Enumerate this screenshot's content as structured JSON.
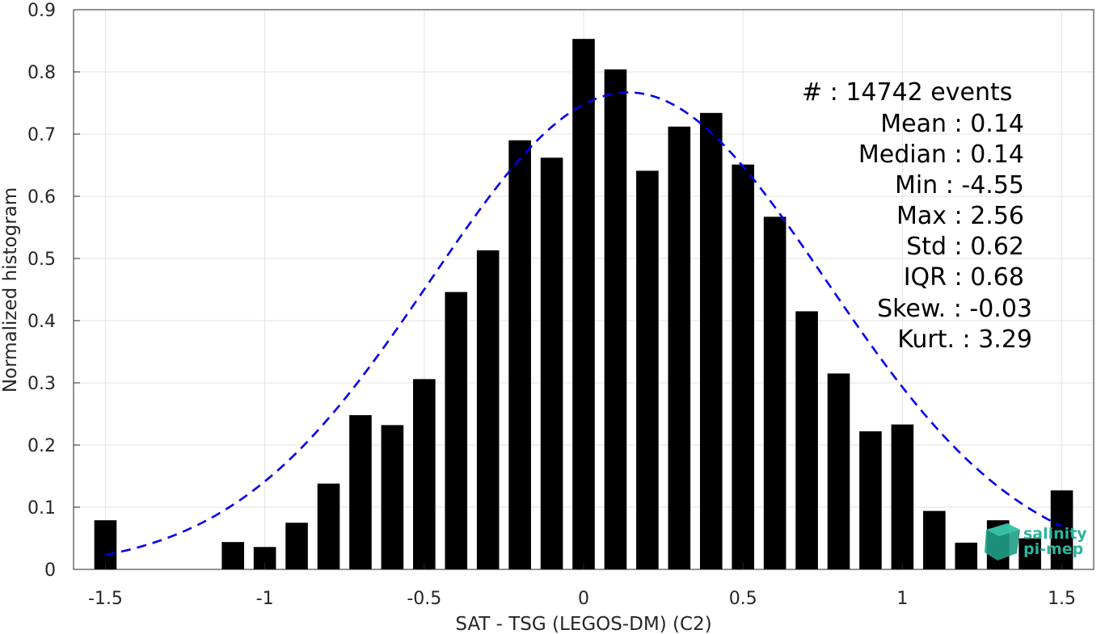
{
  "chart_data": {
    "type": "bar",
    "xlabel": "SAT - TSG (LEGOS-DM) (C2)",
    "ylabel": "Normalized histogram",
    "xlim": [
      -1.6,
      1.6
    ],
    "ylim": [
      0,
      0.9
    ],
    "x_ticks": [
      "-1.5",
      "-1",
      "-0.5",
      "0",
      "0.5",
      "1",
      "1.5"
    ],
    "x_tick_values": [
      -1.5,
      -1,
      -0.5,
      0,
      0.5,
      1,
      1.5
    ],
    "y_ticks": [
      "0",
      "0.1",
      "0.2",
      "0.3",
      "0.4",
      "0.5",
      "0.6",
      "0.7",
      "0.8",
      "0.9"
    ],
    "y_tick_values": [
      0,
      0.1,
      0.2,
      0.3,
      0.4,
      0.5,
      0.6,
      0.7,
      0.8,
      0.9
    ],
    "grid": true,
    "bar_color": "#000000",
    "bars": [
      {
        "x": -1.5,
        "value": 0.079
      },
      {
        "x": -1.1,
        "value": 0.044
      },
      {
        "x": -1.0,
        "value": 0.036
      },
      {
        "x": -0.9,
        "value": 0.075
      },
      {
        "x": -0.8,
        "value": 0.138
      },
      {
        "x": -0.7,
        "value": 0.248
      },
      {
        "x": -0.6,
        "value": 0.232
      },
      {
        "x": -0.5,
        "value": 0.306
      },
      {
        "x": -0.4,
        "value": 0.446
      },
      {
        "x": -0.3,
        "value": 0.513
      },
      {
        "x": -0.2,
        "value": 0.69
      },
      {
        "x": -0.1,
        "value": 0.662
      },
      {
        "x": 0.0,
        "value": 0.853
      },
      {
        "x": 0.1,
        "value": 0.804
      },
      {
        "x": 0.2,
        "value": 0.641
      },
      {
        "x": 0.3,
        "value": 0.712
      },
      {
        "x": 0.4,
        "value": 0.734
      },
      {
        "x": 0.5,
        "value": 0.651
      },
      {
        "x": 0.6,
        "value": 0.567
      },
      {
        "x": 0.7,
        "value": 0.415
      },
      {
        "x": 0.8,
        "value": 0.315
      },
      {
        "x": 0.9,
        "value": 0.222
      },
      {
        "x": 1.0,
        "value": 0.233
      },
      {
        "x": 1.1,
        "value": 0.094
      },
      {
        "x": 1.2,
        "value": 0.043
      },
      {
        "x": 1.3,
        "value": 0.079
      },
      {
        "x": 1.4,
        "value": 0.05
      },
      {
        "x": 1.5,
        "value": 0.127
      }
    ],
    "fit_curve": {
      "style": "dashed",
      "color": "#0000ee",
      "mean": 0.14,
      "std": 0.62,
      "peak": 0.767,
      "x_range": [
        -1.5,
        1.5
      ]
    },
    "stats": [
      "#  : 14742 events",
      "Mean : 0.14",
      "Median : 0.14",
      "Min : -4.55",
      "Max : 2.56",
      "Std : 0.62",
      "IQR : 0.68",
      "Skew. : -0.03",
      "Kurt. : 3.29"
    ]
  },
  "logo": {
    "line1": "salinity",
    "line2": "pi-mep",
    "color": "#2bb59a"
  }
}
